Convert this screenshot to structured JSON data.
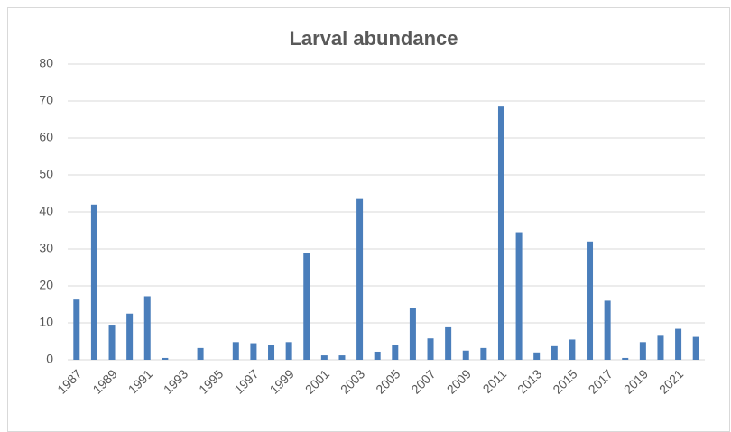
{
  "chart_data": {
    "type": "bar",
    "title": "Larval abundance",
    "categories": [
      "1987",
      null,
      "1989",
      null,
      "1991",
      null,
      "1993",
      null,
      "1995",
      null,
      "1997",
      null,
      "1999",
      null,
      "2001",
      null,
      "2003",
      null,
      "2005",
      null,
      "2007",
      null,
      "2009",
      null,
      "2011",
      null,
      "2013",
      null,
      "2015",
      null,
      "2017",
      null,
      "2019",
      null,
      "2021",
      null
    ],
    "values": [
      16.3,
      42,
      9.5,
      12.5,
      17.2,
      0.5,
      0,
      3.2,
      0,
      4.8,
      4.5,
      4,
      4.8,
      29,
      1.2,
      1.2,
      43.5,
      2.2,
      4,
      14,
      5.8,
      8.8,
      2.5,
      3.2,
      68.5,
      34.5,
      2,
      3.7,
      5.5,
      32,
      16,
      0.5,
      4.8,
      6.5,
      8.4,
      6.2
    ],
    "color": "#4a7ebb",
    "ylim": [
      0,
      80
    ],
    "yticks": [
      0,
      10,
      20,
      30,
      40,
      50,
      60,
      70,
      80
    ],
    "grid": true
  }
}
